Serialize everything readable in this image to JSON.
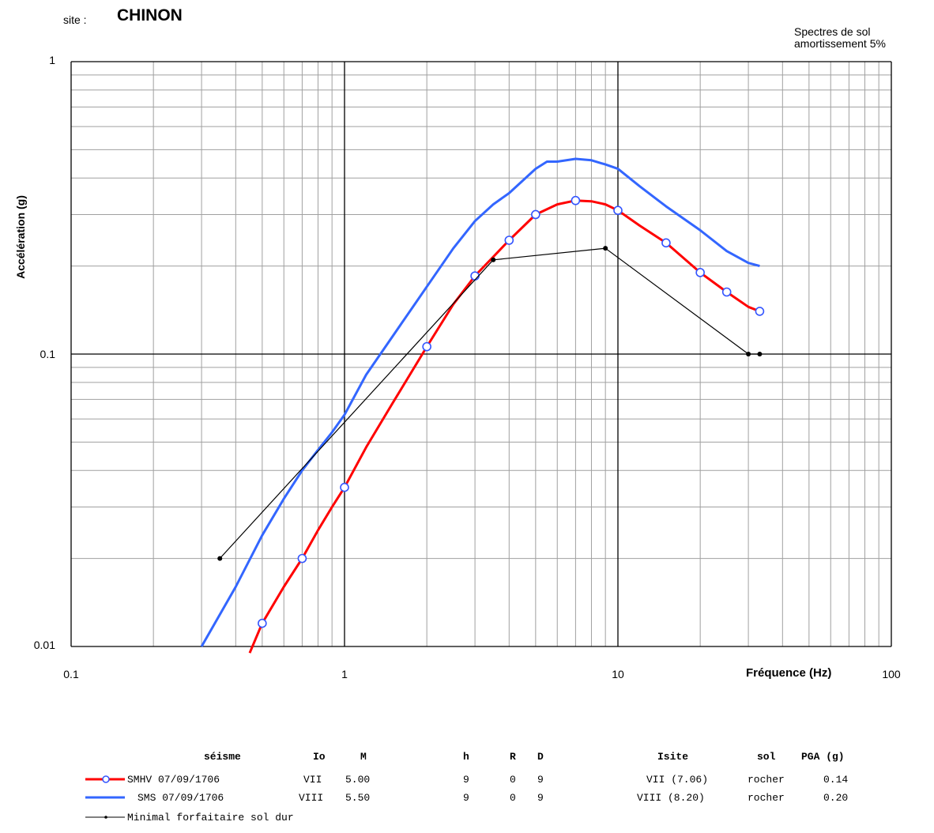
{
  "header": {
    "site_label": "site :",
    "site_name": "CHINON",
    "note_line1": "Spectres de sol",
    "note_line2": "amortissement 5%"
  },
  "chart_data": {
    "type": "line",
    "xlabel": "Fréquence (Hz)",
    "ylabel": "Accélération (g)",
    "xscale": "log",
    "yscale": "log",
    "xlim": [
      0.1,
      100
    ],
    "ylim": [
      0.01,
      1
    ],
    "x_ticks": [
      "0.1",
      "1",
      "10",
      "100"
    ],
    "y_ticks": [
      "1",
      "0.1",
      "0.01"
    ],
    "grid": true,
    "series": [
      {
        "name": "SMHV 07/09/1706",
        "color": "#ff0000",
        "marker": "open-circle",
        "x": [
          0.45,
          0.5,
          0.6,
          0.7,
          0.8,
          0.9,
          1.0,
          1.2,
          1.5,
          1.8,
          2.0,
          2.5,
          3.0,
          3.5,
          4.0,
          5.0,
          6.0,
          7.0,
          8.0,
          9.0,
          10.0,
          12.0,
          15.0,
          20.0,
          25.0,
          30.0,
          33.0
        ],
        "y": [
          0.0095,
          0.012,
          0.016,
          0.02,
          0.025,
          0.03,
          0.035,
          0.048,
          0.068,
          0.09,
          0.106,
          0.148,
          0.185,
          0.215,
          0.245,
          0.3,
          0.325,
          0.335,
          0.333,
          0.325,
          0.31,
          0.275,
          0.24,
          0.19,
          0.163,
          0.145,
          0.14
        ],
        "marked_x": [
          0.5,
          0.7,
          1.0,
          2.0,
          3.0,
          4.0,
          5.0,
          7.0,
          10.0,
          15.0,
          20.0,
          25.0,
          33.0
        ],
        "marked_y": [
          0.012,
          0.02,
          0.035,
          0.106,
          0.185,
          0.245,
          0.3,
          0.335,
          0.31,
          0.24,
          0.19,
          0.163,
          0.14
        ]
      },
      {
        "name": "SMS 07/09/1706",
        "color": "#3366ff",
        "marker": "none",
        "x": [
          0.3,
          0.4,
          0.5,
          0.6,
          0.7,
          0.8,
          0.9,
          1.0,
          1.2,
          1.5,
          2.0,
          2.5,
          3.0,
          3.5,
          4.0,
          5.0,
          5.5,
          6.0,
          7.0,
          8.0,
          9.0,
          10.0,
          12.0,
          15.0,
          20.0,
          25.0,
          30.0,
          33.0
        ],
        "y": [
          0.01,
          0.016,
          0.024,
          0.032,
          0.04,
          0.047,
          0.054,
          0.062,
          0.085,
          0.115,
          0.17,
          0.23,
          0.285,
          0.325,
          0.355,
          0.43,
          0.455,
          0.455,
          0.465,
          0.46,
          0.445,
          0.43,
          0.375,
          0.32,
          0.265,
          0.225,
          0.205,
          0.2
        ]
      },
      {
        "name": "Minimal forfaitaire sol dur",
        "color": "#000000",
        "marker": "dot",
        "x": [
          0.35,
          3.5,
          9.0,
          30.0,
          33.0
        ],
        "y": [
          0.02,
          0.21,
          0.23,
          0.1,
          0.1
        ]
      }
    ]
  },
  "table": {
    "headers": [
      "séisme",
      "Io",
      "M",
      "h",
      "R",
      "D",
      "Isite",
      "sol",
      "PGA (g)"
    ],
    "rows": [
      {
        "seisme": "SMHV 07/09/1706",
        "io": "VII",
        "m": "5.00",
        "h": "9",
        "r": "0",
        "d": "9",
        "isite": "VII (7.06)",
        "sol": "rocher",
        "pga": "0.14"
      },
      {
        "seisme": "SMS 07/09/1706",
        "io": "VIII",
        "m": "5.50",
        "h": "9",
        "r": "0",
        "d": "9",
        "isite": "VIII (8.20)",
        "sol": "rocher",
        "pga": "0.20"
      }
    ],
    "minimal_label": "Minimal forfaitaire sol dur"
  }
}
